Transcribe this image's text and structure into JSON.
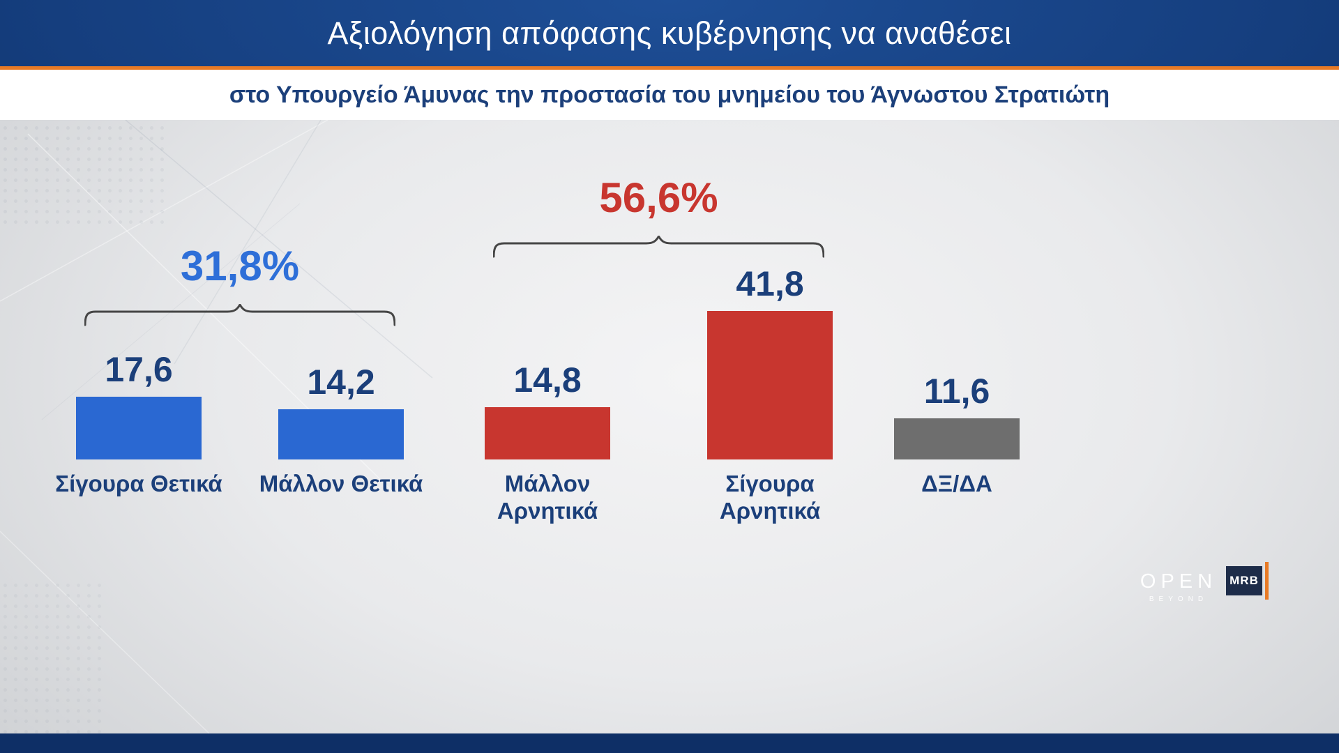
{
  "header": {
    "title": "Αξιολόγηση απόφασης κυβέρνησης να αναθέσει",
    "subtitle": "στο Υπουργείο Άμυνας την προστασία του μνημείου του Άγνωστου Στρατιώτη"
  },
  "chart_data": {
    "type": "bar",
    "title": "Αξιολόγηση απόφασης κυβέρνησης να αναθέσει στο Υπουργείο Άμυνας την προστασία του μνημείου του Άγνωστου Στρατιώτη",
    "categories": [
      "Σίγουρα Θετικά",
      "Μάλλον Θετικά",
      "Μάλλον Αρνητικά",
      "Σίγουρα Αρνητικά",
      "ΔΞ/ΔΑ"
    ],
    "values": [
      17.6,
      14.2,
      14.8,
      41.8,
      11.6
    ],
    "value_labels": [
      "17,6",
      "14,2",
      "14,8",
      "41,8",
      "11,6"
    ],
    "bar_colors": [
      "#2a68d2",
      "#2a68d2",
      "#c8362f",
      "#c8362f",
      "#6e6e6e"
    ],
    "groups": [
      {
        "label": "31,8%",
        "total": 31.8,
        "bars": [
          0,
          1
        ],
        "color": "#2e6fd8"
      },
      {
        "label": "56,6%",
        "total": 56.6,
        "bars": [
          2,
          3
        ],
        "color": "#c8362f"
      }
    ],
    "ylim": [
      0,
      45
    ],
    "unit": "%",
    "grid": false,
    "legend": false
  },
  "logos": {
    "open": {
      "text": "OPEN",
      "tagline": "BEYOND"
    },
    "mrb": {
      "text": "MRB"
    }
  },
  "colors": {
    "header_bg": "#123a78",
    "accent_orange": "#e87a25",
    "title_text": "#ffffff",
    "subtitle_text": "#1b3f7a",
    "value_text": "#1b3f7a",
    "positive_blue": "#2a68d2",
    "negative_red": "#c8362f",
    "neutral_gray": "#6e6e6e",
    "bracket_gray": "#454545",
    "footer_bg": "#0e2f66"
  }
}
